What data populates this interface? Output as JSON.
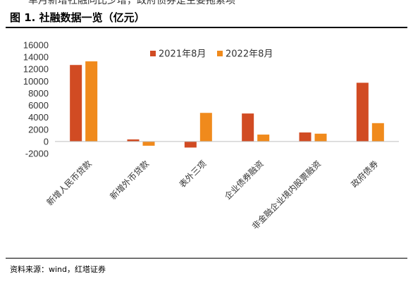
{
  "header": {
    "cut_text": "单月新增社融同比少增，政府债券是主要拖累项",
    "title": "图 1. 社融数据一览（亿元）"
  },
  "footer": {
    "source": "资料来源：wind，红塔证券"
  },
  "colors": {
    "series_2021": "#D14B23",
    "series_2022": "#F08A1C",
    "axis": "#BFBFBF"
  },
  "chart_data": {
    "type": "bar",
    "title": "",
    "xlabel": "",
    "ylabel": "",
    "ylim": [
      -2000,
      16000
    ],
    "yticks": [
      -2000,
      0,
      2000,
      4000,
      6000,
      8000,
      10000,
      12000,
      14000,
      16000
    ],
    "ytick_labels": [
      "-2000",
      "0",
      "2000",
      "4000",
      "6000",
      "8000",
      "10000",
      "12000",
      "14000",
      "16000"
    ],
    "grid": false,
    "legend_position": "top-right",
    "categories": [
      "新增人民币贷款",
      "新增外币贷款",
      "表外三项",
      "企业债券融资",
      "非金融企业境内股票融资",
      "政府债券"
    ],
    "series": [
      {
        "name": "2021年8月",
        "values": [
          12700,
          350,
          -1000,
          4650,
          1500,
          9750
        ]
      },
      {
        "name": "2022年8月",
        "values": [
          13300,
          -700,
          4750,
          1150,
          1300,
          3050
        ]
      }
    ]
  }
}
